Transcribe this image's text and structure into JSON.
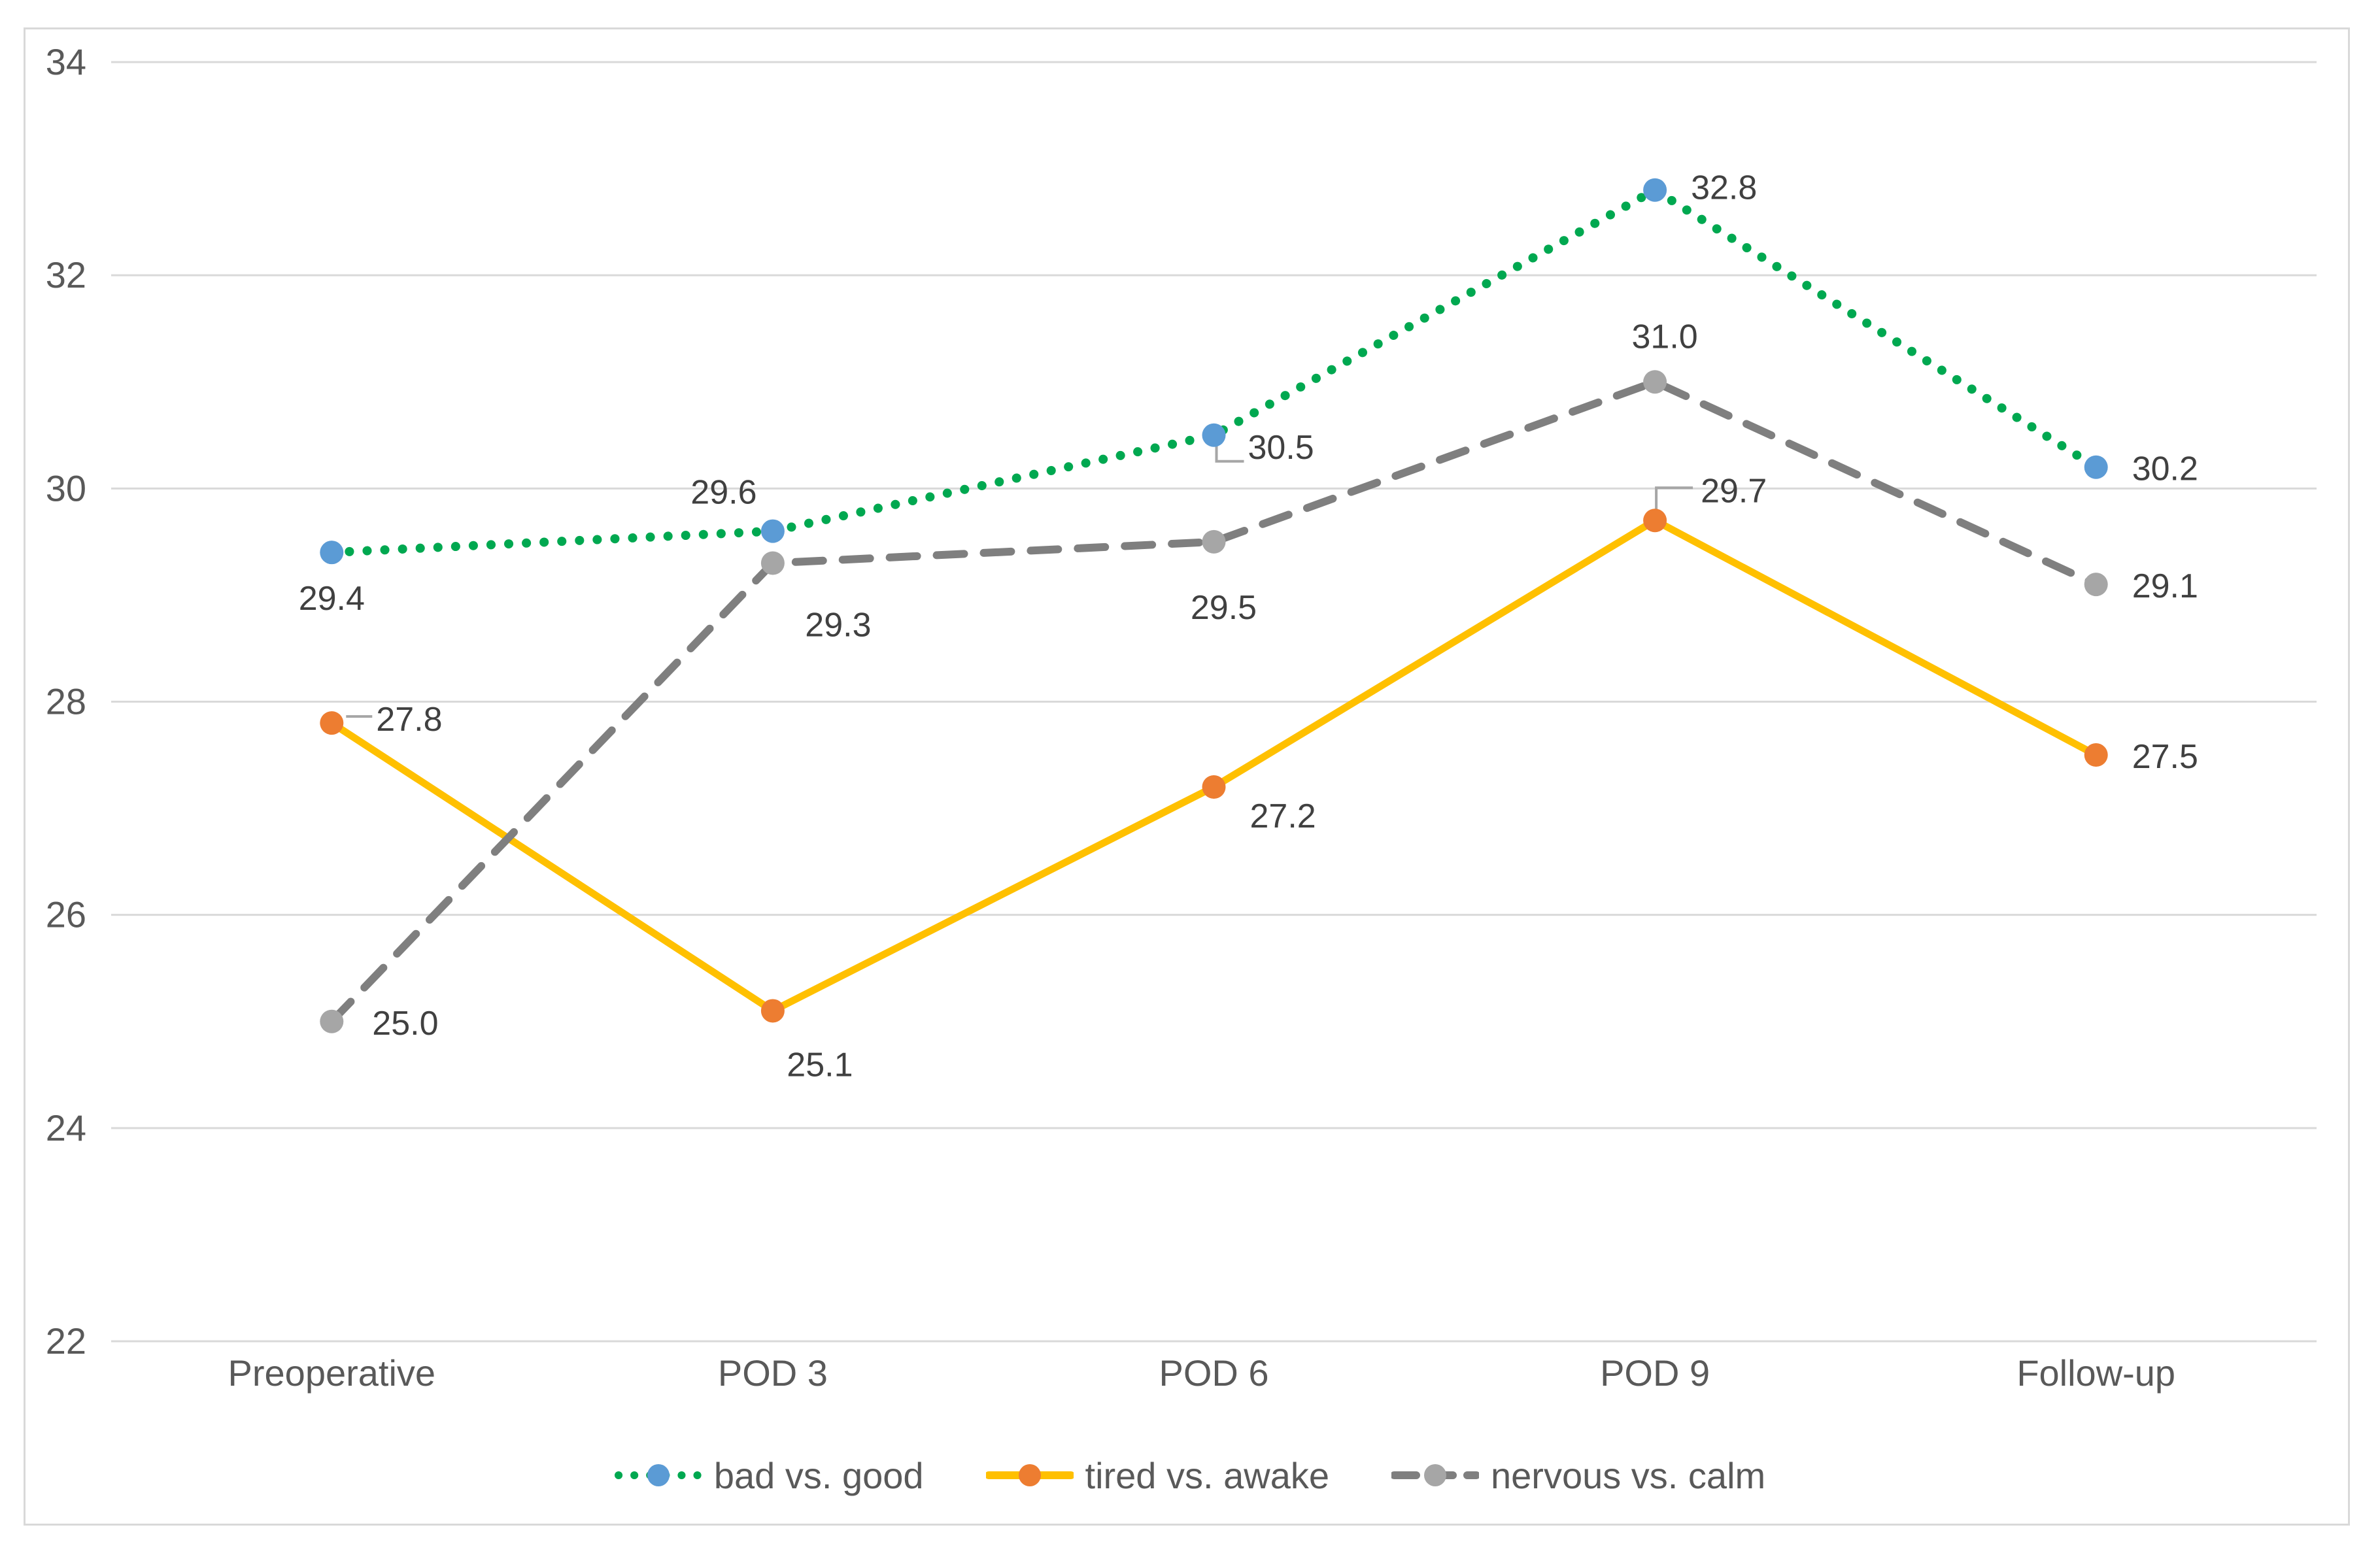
{
  "chart_data": {
    "type": "line",
    "title": "",
    "categories": [
      "Preoperative",
      "POD 3",
      "POD 6",
      "POD 9",
      "Follow-up"
    ],
    "series": [
      {
        "name": "bad vs. good",
        "values": [
          29.4,
          29.6,
          30.5,
          32.8,
          30.2
        ],
        "labels": [
          "29.4",
          "29.6",
          "30.5",
          "32.8",
          "30.2"
        ],
        "line_style": "dotted",
        "line_color": "#00A850",
        "marker_color": "#5B9BD5"
      },
      {
        "name": "tired vs. awake",
        "values": [
          27.8,
          25.1,
          27.2,
          29.7,
          27.5
        ],
        "labels": [
          "27.8",
          "25.1",
          "27.2",
          "29.7",
          "27.5"
        ],
        "line_style": "solid",
        "line_color": "#FFC000",
        "marker_color": "#ED7D31"
      },
      {
        "name": "nervous vs. calm",
        "values": [
          25.0,
          29.3,
          29.5,
          31.0,
          29.1
        ],
        "labels": [
          "25.0",
          "29.3",
          "29.5",
          "31.0",
          "29.1"
        ],
        "line_style": "dashed",
        "line_color": "#7F7F7F",
        "marker_color": "#A6A6A6"
      }
    ],
    "y_axis": {
      "min": 22,
      "max": 34,
      "ticks": [
        "34",
        "32",
        "30",
        "28",
        "26",
        "24",
        "22"
      ]
    },
    "grid": true,
    "legend_position": "bottom",
    "colors": {
      "background": "#FFFFFF",
      "gridline": "#D9D9D9",
      "border": "#D9D9D9",
      "axis_text": "#595959",
      "data_label_text": "#404040",
      "leader_line": "#A6A6A6"
    }
  }
}
